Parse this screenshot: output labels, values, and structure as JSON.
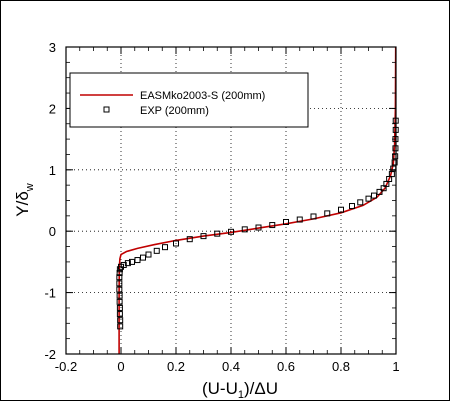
{
  "chart_data": {
    "type": "line",
    "title": "",
    "xlabel": "(U-U",
    "xlabel_sub": "1",
    "xlabel_tail": ")/ΔU",
    "ylabel": "Y/δ",
    "ylabel_sub": "w",
    "xlim": [
      -0.2,
      1.0
    ],
    "ylim": [
      -2,
      3
    ],
    "xticks": [
      -0.2,
      0,
      0.2,
      0.4,
      0.6,
      0.8,
      1
    ],
    "xtick_labels": [
      "-0.2",
      "0",
      "0.2",
      "0.4",
      "0.6",
      "0.8",
      "1"
    ],
    "yticks": [
      -2,
      -1,
      0,
      1,
      2,
      3
    ],
    "ytick_labels": [
      "-2",
      "-1",
      "0",
      "1",
      "2",
      "3"
    ],
    "legend_position": "upper-left",
    "series": [
      {
        "name": "EASMko2003-S (200mm)",
        "kind": "line",
        "color": "#c00000",
        "points": [
          [
            -0.007,
            -2.0
          ],
          [
            -0.007,
            -1.0
          ],
          [
            -0.006,
            -0.6
          ],
          [
            -0.004,
            -0.45
          ],
          [
            0.0,
            -0.38
          ],
          [
            0.02,
            -0.33
          ],
          [
            0.06,
            -0.28
          ],
          [
            0.12,
            -0.22
          ],
          [
            0.2,
            -0.15
          ],
          [
            0.3,
            -0.08
          ],
          [
            0.4,
            -0.02
          ],
          [
            0.5,
            0.05
          ],
          [
            0.6,
            0.12
          ],
          [
            0.7,
            0.2
          ],
          [
            0.8,
            0.3
          ],
          [
            0.88,
            0.42
          ],
          [
            0.93,
            0.55
          ],
          [
            0.96,
            0.7
          ],
          [
            0.98,
            0.9
          ],
          [
            0.99,
            1.1
          ],
          [
            0.995,
            1.4
          ],
          [
            0.998,
            2.0
          ],
          [
            0.999,
            3.0
          ]
        ]
      },
      {
        "name": "EXP (200mm)",
        "kind": "marker",
        "marker": "open-square",
        "color": "#000000",
        "points": [
          [
            -0.003,
            -1.55
          ],
          [
            -0.003,
            -1.45
          ],
          [
            -0.004,
            -1.35
          ],
          [
            -0.004,
            -1.25
          ],
          [
            -0.005,
            -1.15
          ],
          [
            -0.005,
            -1.05
          ],
          [
            -0.006,
            -0.95
          ],
          [
            -0.006,
            -0.85
          ],
          [
            -0.006,
            -0.75
          ],
          [
            -0.005,
            -0.68
          ],
          [
            -0.004,
            -0.62
          ],
          [
            0.0,
            -0.58
          ],
          [
            0.01,
            -0.55
          ],
          [
            0.025,
            -0.52
          ],
          [
            0.04,
            -0.5
          ],
          [
            0.06,
            -0.47
          ],
          [
            0.08,
            -0.43
          ],
          [
            0.1,
            -0.38
          ],
          [
            0.13,
            -0.32
          ],
          [
            0.16,
            -0.26
          ],
          [
            0.2,
            -0.2
          ],
          [
            0.25,
            -0.13
          ],
          [
            0.3,
            -0.08
          ],
          [
            0.35,
            -0.04
          ],
          [
            0.4,
            -0.01
          ],
          [
            0.45,
            0.03
          ],
          [
            0.5,
            0.06
          ],
          [
            0.55,
            0.1
          ],
          [
            0.6,
            0.15
          ],
          [
            0.65,
            0.19
          ],
          [
            0.7,
            0.24
          ],
          [
            0.75,
            0.29
          ],
          [
            0.8,
            0.35
          ],
          [
            0.84,
            0.41
          ],
          [
            0.87,
            0.47
          ],
          [
            0.9,
            0.53
          ],
          [
            0.92,
            0.58
          ],
          [
            0.94,
            0.64
          ],
          [
            0.955,
            0.7
          ],
          [
            0.965,
            0.77
          ],
          [
            0.975,
            0.85
          ],
          [
            0.985,
            0.93
          ],
          [
            0.99,
            1.02
          ],
          [
            0.995,
            1.12
          ],
          [
            0.997,
            1.22
          ],
          [
            0.998,
            1.35
          ],
          [
            0.998,
            1.5
          ],
          [
            0.999,
            1.65
          ],
          [
            0.999,
            1.8
          ]
        ]
      }
    ]
  }
}
